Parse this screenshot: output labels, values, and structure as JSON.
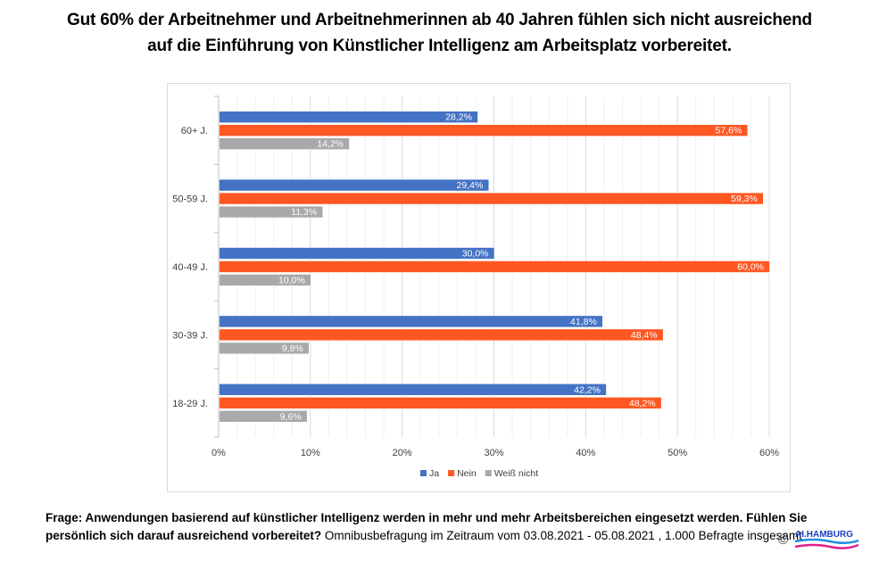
{
  "title": {
    "line1": "Gut 60% der Arbeitnehmer und Arbeitnehmerinnen ab 40 Jahren fühlen sich nicht ausreichend",
    "line2": "auf die Einführung von Künstlicher Intelligenz am Arbeitsplatz vorbereitet."
  },
  "chart_data": {
    "type": "bar",
    "orientation": "horizontal",
    "title": "Gut 60% der Arbeitnehmer und Arbeitnehmerinnen ab 40 Jahren fühlen sich nicht ausreichend auf die Einführung von Künstlicher Intelligenz am Arbeitsplatz vorbereitet.",
    "xlabel": "",
    "ylabel": "",
    "categories": [
      "60+ J.",
      "50-59 J.",
      "40-49 J.",
      "30-39 J.",
      "18-29 J."
    ],
    "series": [
      {
        "name": "Ja",
        "color": "#4472C4",
        "values": [
          28.2,
          29.4,
          30.0,
          41.8,
          42.2
        ],
        "labels": [
          "28,2%",
          "29,4%",
          "30,0%",
          "41,8%",
          "42,2%"
        ]
      },
      {
        "name": "Nein",
        "color": "#FF5722",
        "values": [
          57.6,
          59.3,
          60.0,
          48.4,
          48.2
        ],
        "labels": [
          "57,6%",
          "59,3%",
          "60,0%",
          "48,4%",
          "48,2%"
        ]
      },
      {
        "name": "Weiß nicht",
        "color": "#A9A9A9",
        "values": [
          14.2,
          11.3,
          10.0,
          9.8,
          9.6
        ],
        "labels": [
          "14,2%",
          "11,3%",
          "10,0%",
          "9,8%",
          "9,6%"
        ]
      }
    ],
    "xlim": [
      0,
      60
    ],
    "xticks": [
      0,
      10,
      20,
      30,
      40,
      50,
      60
    ],
    "xtick_labels": [
      "0%",
      "10%",
      "20%",
      "30%",
      "40%",
      "50%",
      "60%"
    ],
    "minor_step": 2,
    "grid": true,
    "legend": "bottom-center"
  },
  "footer": {
    "question": "Frage: Anwendungen basierend auf künstlicher Intelligenz werden in mehr und mehr Arbeitsbereichen eingesetzt werden. Fühlen Sie persönlich sich darauf ausreichend vorbereitet?",
    "info": " Omnibusbefragung im Zeitraum vom 03.08.2021 - 05.08.2021 , 1.000 Befragte insgesamt"
  },
  "logo": {
    "copyright": "©",
    "text": "AI.HAMBURG",
    "colors": {
      "text": "#1a3dbf",
      "wave1": "#1f8fe0",
      "wave2": "#e0208a"
    }
  }
}
